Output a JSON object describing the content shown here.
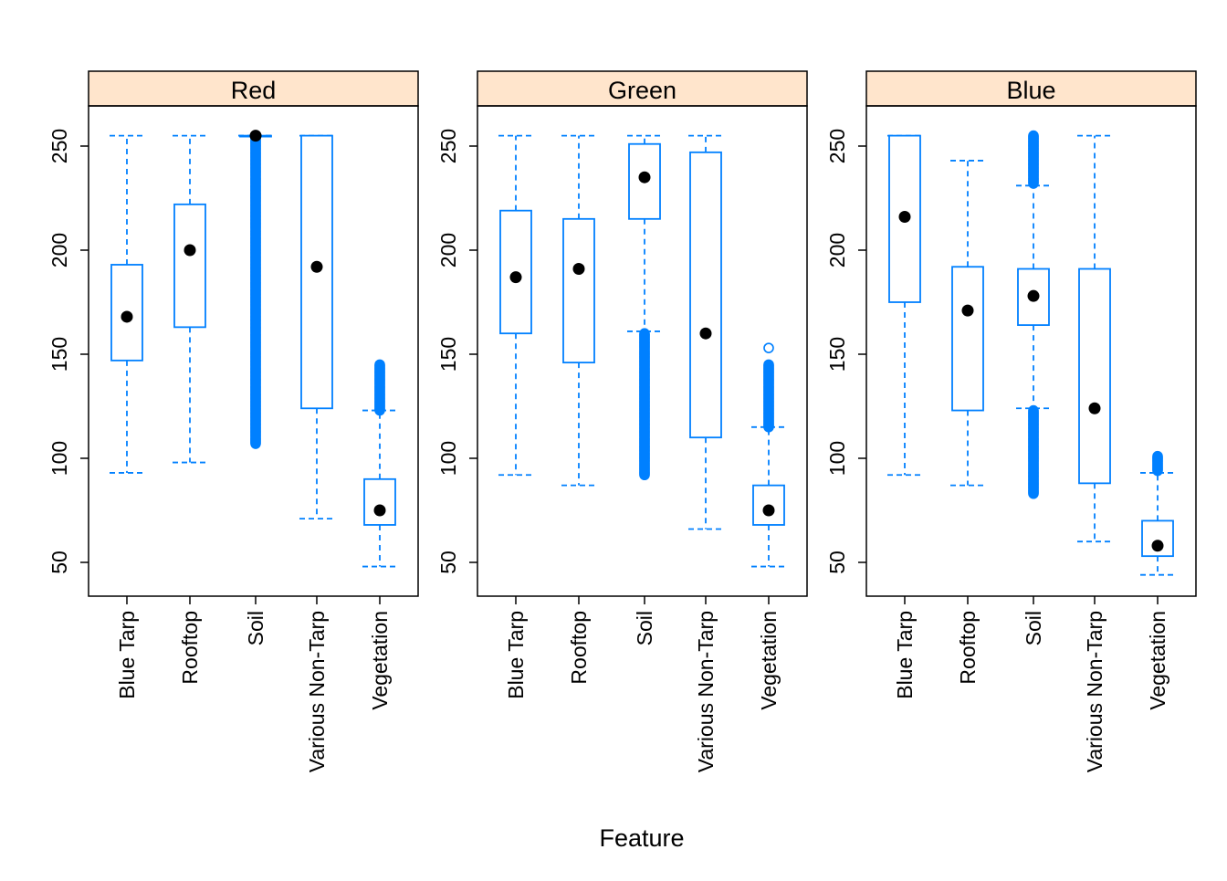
{
  "colors": {
    "box": "#0080ff",
    "strip": "#ffe5cc",
    "median_dot": "#000000",
    "axis": "#000000"
  },
  "chart_data": {
    "type": "box",
    "xlabel": "Feature",
    "ylabel": "",
    "categories": [
      "Blue Tarp",
      "Rooftop",
      "Soil",
      "Various Non-Tarp",
      "Vegetation"
    ],
    "y_ticks": [
      50,
      100,
      150,
      200,
      250
    ],
    "ylim": [
      35,
      268
    ],
    "panels": [
      {
        "name": "Red",
        "boxes": [
          {
            "category": "Blue Tarp",
            "low": 93,
            "q1": 147,
            "median": 168,
            "q3": 193,
            "high": 255,
            "outliers": []
          },
          {
            "category": "Rooftop",
            "low": 98,
            "q1": 163,
            "median": 200,
            "q3": 222,
            "high": 255,
            "outliers": []
          },
          {
            "category": "Soil",
            "low": 255,
            "q1": 255,
            "median": 255,
            "q3": 255,
            "high": 255,
            "outliers_range": [
              107,
              254
            ]
          },
          {
            "category": "Various Non-Tarp",
            "low": 71,
            "q1": 124,
            "median": 192,
            "q3": 255,
            "high": 255,
            "outliers": []
          },
          {
            "category": "Vegetation",
            "low": 48,
            "q1": 68,
            "median": 75,
            "q3": 90,
            "high": 123,
            "outliers_range": [
              123,
              145
            ]
          }
        ]
      },
      {
        "name": "Green",
        "boxes": [
          {
            "category": "Blue Tarp",
            "low": 92,
            "q1": 160,
            "median": 187,
            "q3": 219,
            "high": 255,
            "outliers": []
          },
          {
            "category": "Rooftop",
            "low": 87,
            "q1": 146,
            "median": 191,
            "q3": 215,
            "high": 255,
            "outliers": []
          },
          {
            "category": "Soil",
            "low": 161,
            "q1": 215,
            "median": 235,
            "q3": 251,
            "high": 255,
            "outliers_range": [
              92,
              160
            ]
          },
          {
            "category": "Various Non-Tarp",
            "low": 66,
            "q1": 110,
            "median": 160,
            "q3": 247,
            "high": 255,
            "outliers": []
          },
          {
            "category": "Vegetation",
            "low": 48,
            "q1": 68,
            "median": 75,
            "q3": 87,
            "high": 115,
            "outliers_range": [
              115,
              145
            ],
            "outliers": [
              153
            ]
          }
        ]
      },
      {
        "name": "Blue",
        "boxes": [
          {
            "category": "Blue Tarp",
            "low": 92,
            "q1": 175,
            "median": 216,
            "q3": 255,
            "high": 255,
            "outliers": []
          },
          {
            "category": "Rooftop",
            "low": 87,
            "q1": 123,
            "median": 171,
            "q3": 192,
            "high": 243,
            "outliers": []
          },
          {
            "category": "Soil",
            "low": 124,
            "q1": 164,
            "median": 178,
            "q3": 191,
            "high": 231,
            "outliers_ranges": [
              [
                83,
                123
              ],
              [
                232,
                255
              ]
            ]
          },
          {
            "category": "Various Non-Tarp",
            "low": 60,
            "q1": 88,
            "median": 124,
            "q3": 191,
            "high": 255,
            "outliers": []
          },
          {
            "category": "Vegetation",
            "low": 44,
            "q1": 53,
            "median": 58,
            "q3": 70,
            "high": 93,
            "outliers_range": [
              94,
              101
            ]
          }
        ]
      }
    ]
  }
}
